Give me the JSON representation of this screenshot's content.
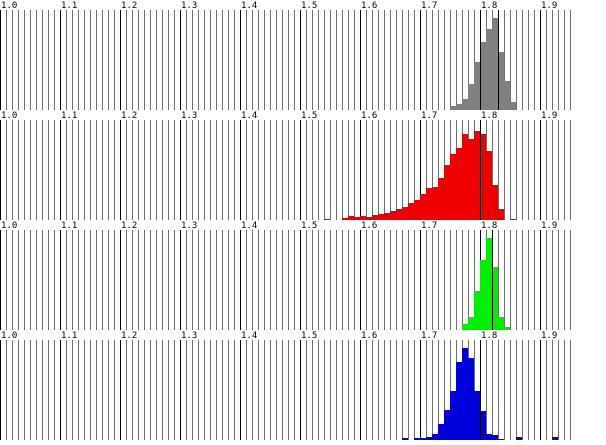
{
  "axis": {
    "range": [
      1.0,
      1.95
    ],
    "major_step": 0.1,
    "minor_step": 0.01,
    "tick_labels": [
      "1.0",
      "1.1",
      "1.2",
      "1.3",
      "1.4",
      "1.5",
      "1.6",
      "1.7",
      "1.8",
      "1.9"
    ]
  },
  "panels": [
    {
      "id": "gray",
      "color": "#808080",
      "bin_width": 0.01,
      "bins": [
        {
          "x": 1.75,
          "v": 0.04
        },
        {
          "x": 1.76,
          "v": 0.06
        },
        {
          "x": 1.77,
          "v": 0.12
        },
        {
          "x": 1.78,
          "v": 0.28
        },
        {
          "x": 1.79,
          "v": 0.52
        },
        {
          "x": 1.8,
          "v": 0.74
        },
        {
          "x": 1.81,
          "v": 0.88
        },
        {
          "x": 1.82,
          "v": 1.0
        },
        {
          "x": 1.83,
          "v": 0.63
        },
        {
          "x": 1.84,
          "v": 0.32
        },
        {
          "x": 1.85,
          "v": 0.09
        }
      ],
      "markers": [
        1.8,
        1.83
      ]
    },
    {
      "id": "red",
      "color": "#ee0000",
      "bin_width": 0.01,
      "bins": [
        {
          "x": 1.54,
          "v": 0.01
        },
        {
          "x": 1.57,
          "v": 0.02
        },
        {
          "x": 1.58,
          "v": 0.04
        },
        {
          "x": 1.59,
          "v": 0.03
        },
        {
          "x": 1.6,
          "v": 0.04
        },
        {
          "x": 1.61,
          "v": 0.03
        },
        {
          "x": 1.62,
          "v": 0.05
        },
        {
          "x": 1.63,
          "v": 0.06
        },
        {
          "x": 1.64,
          "v": 0.08
        },
        {
          "x": 1.65,
          "v": 0.1
        },
        {
          "x": 1.66,
          "v": 0.12
        },
        {
          "x": 1.67,
          "v": 0.14
        },
        {
          "x": 1.68,
          "v": 0.18
        },
        {
          "x": 1.69,
          "v": 0.22
        },
        {
          "x": 1.7,
          "v": 0.28
        },
        {
          "x": 1.71,
          "v": 0.35
        },
        {
          "x": 1.72,
          "v": 0.36
        },
        {
          "x": 1.73,
          "v": 0.46
        },
        {
          "x": 1.74,
          "v": 0.6
        },
        {
          "x": 1.75,
          "v": 0.72
        },
        {
          "x": 1.76,
          "v": 0.78
        },
        {
          "x": 1.77,
          "v": 0.94
        },
        {
          "x": 1.78,
          "v": 0.88
        },
        {
          "x": 1.79,
          "v": 0.97
        },
        {
          "x": 1.8,
          "v": 0.93
        },
        {
          "x": 1.81,
          "v": 0.75
        },
        {
          "x": 1.82,
          "v": 0.38
        },
        {
          "x": 1.83,
          "v": 0.12
        },
        {
          "x": 1.85,
          "v": 0.01
        }
      ],
      "markers": [
        1.8
      ]
    },
    {
      "id": "green",
      "color": "#00ee00",
      "bin_width": 0.01,
      "bins": [
        {
          "x": 1.77,
          "v": 0.06
        },
        {
          "x": 1.78,
          "v": 0.14
        },
        {
          "x": 1.79,
          "v": 0.42
        },
        {
          "x": 1.8,
          "v": 0.76
        },
        {
          "x": 1.81,
          "v": 1.0
        },
        {
          "x": 1.82,
          "v": 0.68
        },
        {
          "x": 1.83,
          "v": 0.14
        },
        {
          "x": 1.84,
          "v": 0.03
        }
      ],
      "markers": [
        1.82
      ]
    },
    {
      "id": "blue",
      "color": "#0000dd",
      "bin_width": 0.01,
      "bins": [
        {
          "x": 1.67,
          "v": 0.02
        },
        {
          "x": 1.69,
          "v": 0.02
        },
        {
          "x": 1.7,
          "v": 0.02
        },
        {
          "x": 1.71,
          "v": 0.03
        },
        {
          "x": 1.72,
          "v": 0.07
        },
        {
          "x": 1.73,
          "v": 0.17
        },
        {
          "x": 1.74,
          "v": 0.33
        },
        {
          "x": 1.75,
          "v": 0.53
        },
        {
          "x": 1.76,
          "v": 0.85
        },
        {
          "x": 1.77,
          "v": 1.0
        },
        {
          "x": 1.78,
          "v": 0.89
        },
        {
          "x": 1.79,
          "v": 0.53
        },
        {
          "x": 1.8,
          "v": 0.32
        },
        {
          "x": 1.81,
          "v": 0.07
        },
        {
          "x": 1.82,
          "v": 0.05
        },
        {
          "x": 1.83,
          "v": 0.01
        },
        {
          "x": 1.86,
          "v": 0.03
        },
        {
          "x": 1.92,
          "v": 0.03
        }
      ],
      "markers": [
        1.8
      ]
    }
  ]
}
